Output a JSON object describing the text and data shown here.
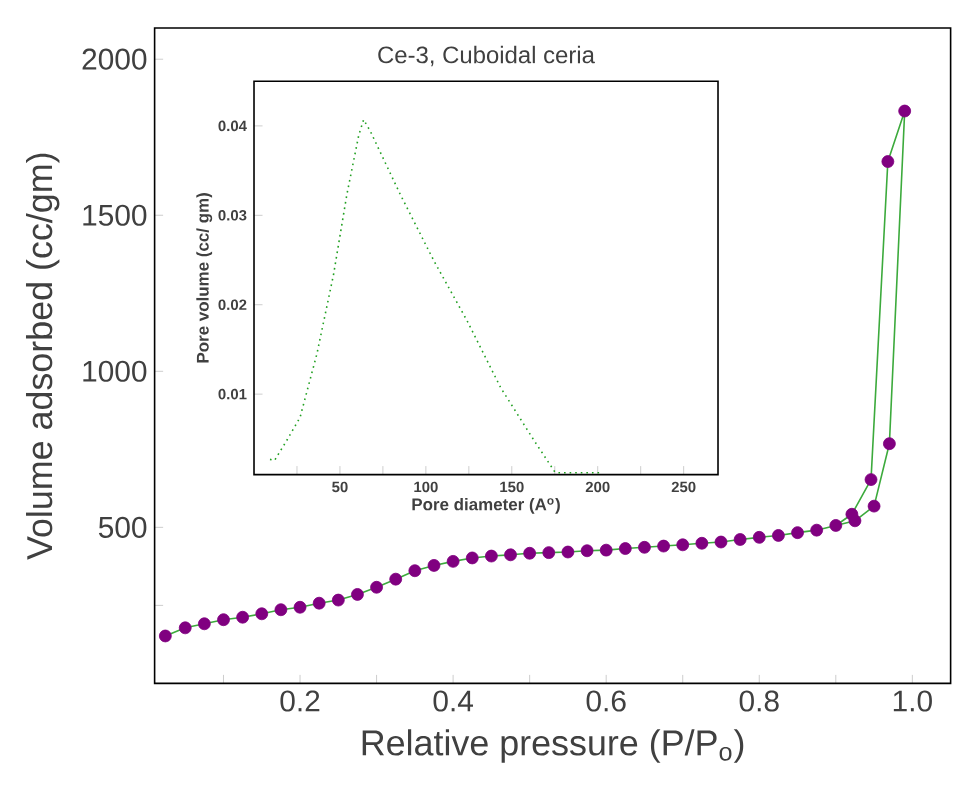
{
  "chart_data": [
    {
      "type": "line",
      "xlabel": "Relative pressure (P/P$_{o}$)",
      "ylabel": "Volume adsorbed (cc/gm)",
      "xlim": [
        0.01,
        1.05
      ],
      "ylim": [
        0,
        2100
      ],
      "xticks": [
        {
          "value": 0.1,
          "label": null
        },
        0.2,
        {
          "value": 0.3,
          "label": null
        },
        0.4,
        {
          "value": 0.5,
          "label": null
        },
        0.6,
        {
          "value": 0.7,
          "label": null
        },
        0.8,
        {
          "value": 0.9,
          "label": null
        },
        {
          "value": 1.0,
          "label": "1.0"
        }
      ],
      "yticks": [
        {
          "value": 250,
          "label": null
        },
        500,
        1000,
        1500,
        2000
      ],
      "series": [
        {
          "color": "#3caa3c",
          "marker": "none",
          "line_style": "solid",
          "x": [
            0.024,
            0.05,
            0.075,
            0.1,
            0.125,
            0.15,
            0.175,
            0.2,
            0.225,
            0.25,
            0.275,
            0.3,
            0.325,
            0.35,
            0.375,
            0.4,
            0.425,
            0.45,
            0.475,
            0.5,
            0.525,
            0.55,
            0.575,
            0.6,
            0.625,
            0.65,
            0.675,
            0.7,
            0.725,
            0.75,
            0.775,
            0.8,
            0.825,
            0.85,
            0.875,
            0.9,
            0.925,
            0.95,
            0.97,
            0.99,
            0.968,
            0.946,
            0.921,
            0.9
          ],
          "values": [
            152,
            178,
            191,
            204,
            212,
            223,
            236,
            244,
            257,
            267,
            285,
            308,
            334,
            361,
            378,
            391,
            402,
            408,
            412,
            417,
            419,
            421,
            425,
            427,
            432,
            436,
            440,
            444,
            449,
            453,
            461,
            468,
            474,
            483,
            491,
            506,
            521,
            568,
            768,
            1834,
            1672,
            653,
            542,
            506
          ]
        },
        {
          "type": "scatter",
          "color": "#800080",
          "marker": "circle",
          "x": [
            0.024,
            0.05,
            0.075,
            0.1,
            0.125,
            0.15,
            0.175,
            0.2,
            0.225,
            0.25,
            0.275,
            0.3,
            0.325,
            0.35,
            0.375,
            0.4,
            0.425,
            0.45,
            0.475,
            0.5,
            0.525,
            0.55,
            0.575,
            0.6,
            0.625,
            0.65,
            0.675,
            0.7,
            0.725,
            0.75,
            0.775,
            0.8,
            0.825,
            0.85,
            0.875,
            0.9,
            0.925,
            0.95,
            0.97,
            0.99,
            0.968,
            0.946,
            0.921
          ],
          "values": [
            152,
            178,
            191,
            204,
            212,
            223,
            236,
            244,
            257,
            267,
            285,
            308,
            334,
            361,
            378,
            391,
            402,
            408,
            412,
            417,
            419,
            421,
            425,
            427,
            432,
            436,
            440,
            444,
            449,
            453,
            461,
            468,
            474,
            483,
            491,
            506,
            521,
            568,
            768,
            1834,
            1672,
            653,
            542
          ]
        }
      ]
    },
    {
      "type": "line",
      "title": "Ce-3, Cuboidal ceria",
      "xlabel": "Pore diameter (A$^{o}$)",
      "ylabel": "Pore volume (cc/ gm)",
      "xlim": [
        0,
        270
      ],
      "ylim": [
        0.001,
        0.045
      ],
      "xticks": [
        {
          "value": 25,
          "label": null
        },
        50,
        {
          "value": 75,
          "label": null
        },
        100,
        {
          "value": 125,
          "label": null
        },
        150,
        {
          "value": 175,
          "label": null
        },
        200,
        {
          "value": 225,
          "label": null
        },
        250
      ],
      "yticks": [
        0.01,
        0.02,
        0.03,
        0.04
      ],
      "series": [
        {
          "color": "#22a022",
          "marker": "none",
          "line_style": "dotted",
          "x": [
            9.3,
            12,
            19,
            26.8,
            36.6,
            46.3,
            54,
            61,
            63.8,
            67.7,
            85.2,
            104.7,
            124,
            143.6,
            163,
            174.7,
            176,
            190,
            202
          ],
          "values": [
            0.0027,
            0.0026,
            0.0048,
            0.0074,
            0.0145,
            0.0234,
            0.0323,
            0.039,
            0.0407,
            0.0394,
            0.0323,
            0.0249,
            0.0182,
            0.0107,
            0.0048,
            0.0014,
            0.0012,
            0.0012,
            0.0012
          ]
        }
      ]
    }
  ]
}
